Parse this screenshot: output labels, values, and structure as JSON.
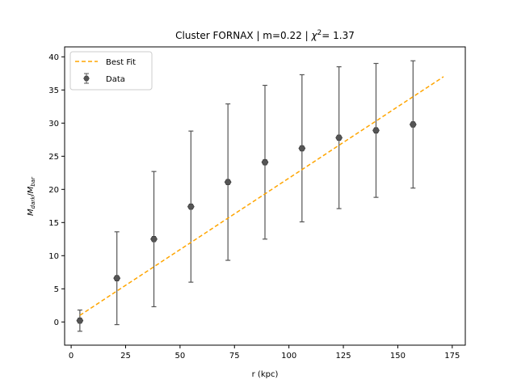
{
  "chart_data": {
    "type": "scatter",
    "title": "Cluster FORNAX | m=0.22 | χ²= 1.37",
    "title_parts": {
      "prefix": "Cluster FORNAX | m=0.22 | ",
      "chi": "χ",
      "sup": "2",
      "suffix": "= 1.37"
    },
    "xlabel": "r (kpc)",
    "ylabel_parts": {
      "m1": "M",
      "sub1": "dark",
      "slash": "/",
      "m2": "M",
      "sub2": "bar"
    },
    "xlim": [
      -3,
      181
    ],
    "ylim": [
      -3.5,
      41.5
    ],
    "xticks": [
      0,
      25,
      50,
      75,
      100,
      125,
      150,
      175
    ],
    "yticks": [
      0,
      5,
      10,
      15,
      20,
      25,
      30,
      35,
      40
    ],
    "grid": false,
    "legend_position": "top-left",
    "series": [
      {
        "name": "Best Fit",
        "kind": "line",
        "style": "dashed",
        "color": "#ffa500",
        "x": [
          4,
          171
        ],
        "y": [
          1.0,
          37.0
        ]
      },
      {
        "name": "Data",
        "kind": "errorbar",
        "color": "#555555",
        "x": [
          4,
          21,
          38,
          55,
          72,
          89,
          106,
          123,
          140,
          157
        ],
        "y": [
          0.2,
          6.6,
          12.5,
          17.4,
          21.1,
          24.1,
          26.2,
          27.8,
          28.9,
          29.8
        ],
        "yerr_low": [
          1.6,
          7.0,
          10.2,
          11.4,
          11.8,
          11.6,
          11.1,
          10.7,
          10.1,
          9.6
        ],
        "yerr_high": [
          1.6,
          7.0,
          10.2,
          11.4,
          11.8,
          11.6,
          11.1,
          10.7,
          10.1,
          9.6
        ]
      }
    ]
  }
}
